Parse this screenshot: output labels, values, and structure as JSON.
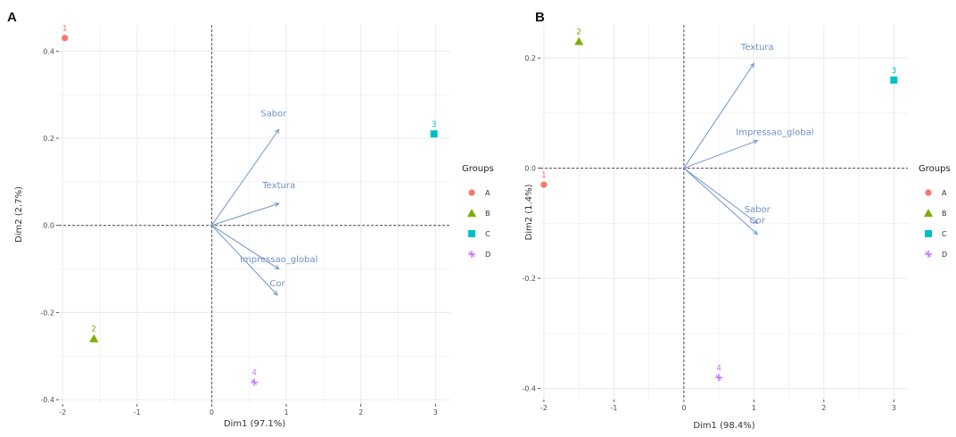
{
  "chart_data": [
    {
      "panel": "A",
      "type": "scatter",
      "subtype": "pca-biplot",
      "xlabel": "Dim1 (97.1%)",
      "ylabel": "Dim2 (2.7%)",
      "xlim": [
        -2.05,
        3.2
      ],
      "ylim": [
        -0.41,
        0.46
      ],
      "xticks": [
        -2,
        -1,
        0,
        1,
        2,
        3
      ],
      "xtick_labels": [
        "-2",
        "-1",
        "0",
        "1",
        "2",
        "3"
      ],
      "yticks": [
        -0.4,
        -0.2,
        0.0,
        0.2,
        0.4
      ],
      "ytick_labels": [
        "-0.4",
        "-0.2",
        "0.0",
        "0.2",
        "0.4"
      ],
      "grid": true,
      "legend_title": "Groups",
      "legend_position": "right",
      "legend_labels": [
        "A",
        "B",
        "C",
        "D"
      ],
      "points": [
        {
          "label": "1",
          "group": "A",
          "x": -1.97,
          "y": 0.43
        },
        {
          "label": "2",
          "group": "B",
          "x": -1.58,
          "y": -0.26
        },
        {
          "label": "3",
          "group": "C",
          "x": 2.98,
          "y": 0.21
        },
        {
          "label": "4",
          "group": "D",
          "x": 0.57,
          "y": -0.36
        }
      ],
      "variables": [
        {
          "name": "Sabor",
          "x": 0.9,
          "y": 0.22
        },
        {
          "name": "Textura",
          "x": 0.9,
          "y": 0.05
        },
        {
          "name": "Impressao_global",
          "x": 0.9,
          "y": -0.1
        },
        {
          "name": "Cor",
          "x": 0.88,
          "y": -0.16
        }
      ],
      "variable_label_offsets": [
        {
          "name": "Sabor",
          "x": 0.83,
          "y": 0.25
        },
        {
          "name": "Textura",
          "x": 0.9,
          "y": 0.085
        },
        {
          "name": "Impressao_global",
          "x": 0.9,
          "y": -0.085
        },
        {
          "name": "Cor",
          "x": 0.88,
          "y": -0.14
        }
      ]
    },
    {
      "panel": "B",
      "type": "scatter",
      "subtype": "pca-biplot",
      "xlabel": "Dim1 (98.4%)",
      "ylabel": "Dim2 (1.4%)",
      "xlim": [
        -2.05,
        3.2
      ],
      "ylim": [
        -0.42,
        0.26
      ],
      "xticks": [
        -2,
        -1,
        0,
        1,
        2,
        3
      ],
      "xtick_labels": [
        "-2",
        "-1",
        "0",
        "1",
        "2",
        "3"
      ],
      "yticks": [
        -0.4,
        -0.2,
        0.0,
        0.2
      ],
      "ytick_labels": [
        "-0.4",
        "-0.2",
        "0.0",
        "0.2"
      ],
      "grid": true,
      "legend_title": "Groups",
      "legend_position": "right",
      "legend_labels": [
        "A",
        "B",
        "C",
        "D"
      ],
      "points": [
        {
          "label": "1",
          "group": "A",
          "x": -2.0,
          "y": -0.03
        },
        {
          "label": "2",
          "group": "B",
          "x": -1.5,
          "y": 0.23
        },
        {
          "label": "3",
          "group": "C",
          "x": 3.0,
          "y": 0.16
        },
        {
          "label": "4",
          "group": "D",
          "x": 0.5,
          "y": -0.38
        }
      ],
      "variables": [
        {
          "name": "Textura",
          "x": 1.0,
          "y": 0.19
        },
        {
          "name": "Impressao_global",
          "x": 1.05,
          "y": 0.05
        },
        {
          "name": "Sabor",
          "x": 1.05,
          "y": -0.1
        },
        {
          "name": "Cor",
          "x": 1.05,
          "y": -0.12
        }
      ],
      "variable_label_offsets": [
        {
          "name": "Textura",
          "x": 1.05,
          "y": 0.215
        },
        {
          "name": "Impressao_global",
          "x": 1.3,
          "y": 0.06
        },
        {
          "name": "Sabor",
          "x": 1.05,
          "y": -0.08
        },
        {
          "name": "Cor",
          "x": 1.05,
          "y": -0.1
        }
      ]
    }
  ],
  "panel_labels": [
    "A",
    "B"
  ],
  "colors": {
    "A": "#f8766d",
    "B": "#7cae00",
    "C": "#00bfc4",
    "D": "#c77cff",
    "variables": "#6f96c9",
    "grid": "#ebebeb",
    "zero_line": "#4d4d4d"
  },
  "group_shapes": {
    "A": "circle",
    "B": "triangle",
    "C": "square",
    "D": "cross"
  }
}
